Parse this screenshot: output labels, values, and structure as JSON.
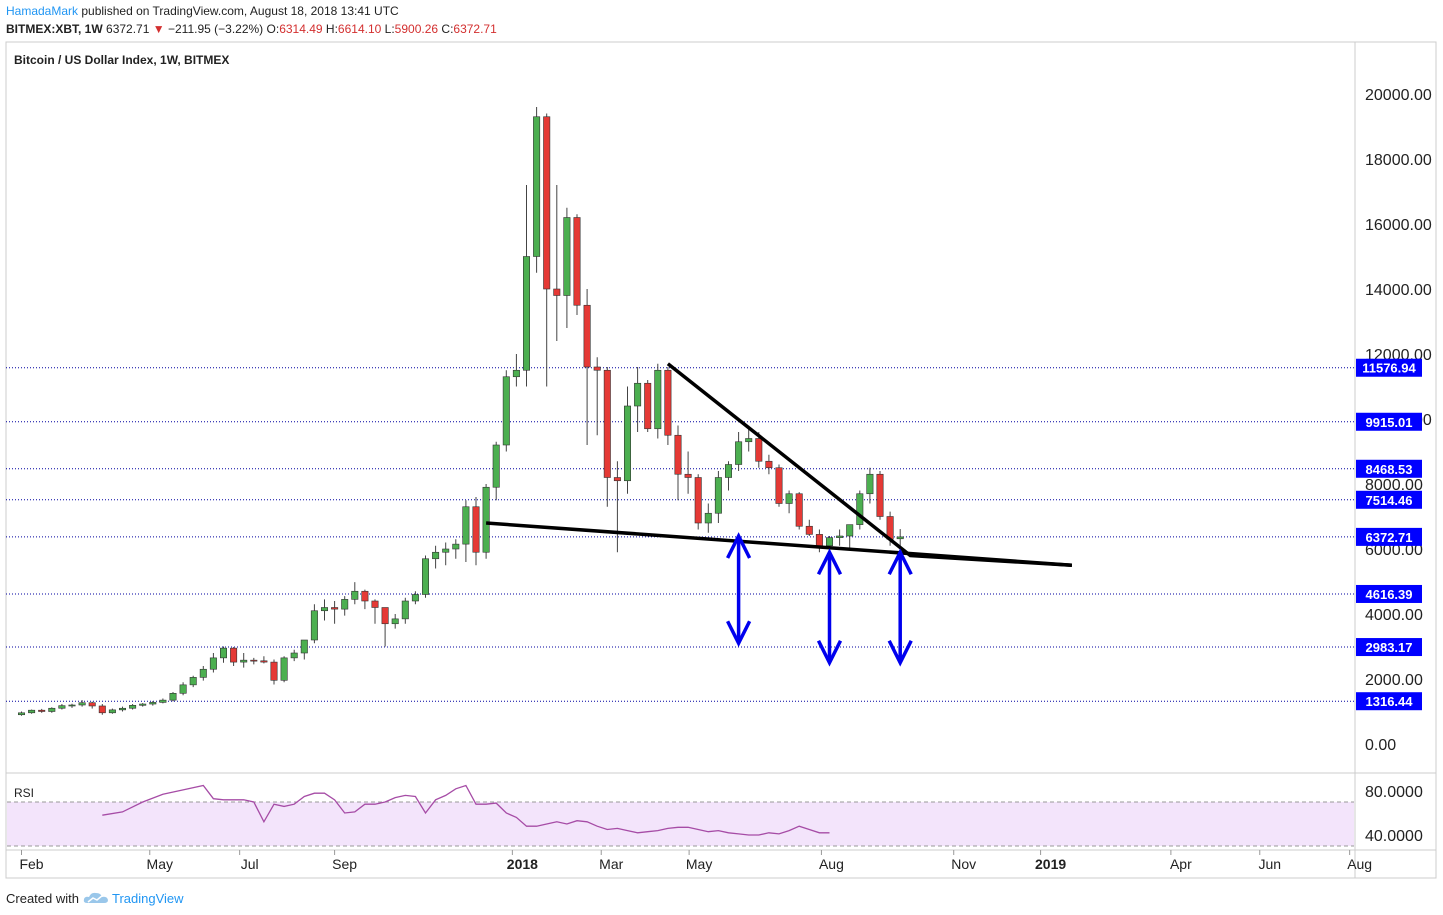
{
  "header": {
    "author": "HamadaMark",
    "published_text": " published on TradingView.com, August 18, 2018 13:41 UTC",
    "symbol_line": "BITMEX:XBT, 1W",
    "last": "6372.71",
    "change": "−211.95 (−3.22%)",
    "o_label": "O:",
    "o_value": "6314.49",
    "h_label": "H:",
    "h_value": "6614.10",
    "l_label": "L:",
    "l_value": "5900.26",
    "c_label": "C:",
    "c_value": "6372.71"
  },
  "footer": {
    "created_with": "Created with",
    "brand": "TradingView",
    "icon": "tradingview-cloud-icon"
  },
  "colors": {
    "up": "#4caf50",
    "down": "#e53935",
    "level_line": "#0000a0",
    "level_label_bg": "#0000ff",
    "arrows": "#0000ee",
    "trendline": "#000000",
    "rsi": "#a64ca6",
    "rsi_band": "#f3e4fb"
  },
  "chart_data": {
    "type": "candlestick",
    "title": "Bitcoin / US Dollar Index, 1W, BITMEX",
    "y_axis": {
      "min": 0,
      "max": 20000,
      "ticks": [
        "0.00",
        "2000.00",
        "4000.00",
        "6000.00",
        "8000.00",
        "10000.00",
        "12000.00",
        "14000.00",
        "16000.00",
        "18000.00",
        "20000.00"
      ]
    },
    "x_axis": {
      "labels": [
        {
          "text": "Feb",
          "t": 0.0,
          "bold": false
        },
        {
          "text": "May",
          "t": 12.7,
          "bold": false
        },
        {
          "text": "Jul",
          "t": 21.6,
          "bold": false
        },
        {
          "text": "Sep",
          "t": 31.0,
          "bold": false
        },
        {
          "text": "2018",
          "t": 48.6,
          "bold": true
        },
        {
          "text": "Mar",
          "t": 57.4,
          "bold": false
        },
        {
          "text": "May",
          "t": 66.1,
          "bold": false
        },
        {
          "text": "Aug",
          "t": 79.2,
          "bold": false
        },
        {
          "text": "Nov",
          "t": 92.3,
          "bold": false
        },
        {
          "text": "2019",
          "t": 100.9,
          "bold": true
        },
        {
          "text": "Apr",
          "t": 113.8,
          "bold": false
        },
        {
          "text": "Jun",
          "t": 122.6,
          "bold": false
        },
        {
          "text": "Aug",
          "t": 131.5,
          "bold": false
        }
      ]
    },
    "candles": [
      {
        "t": 0,
        "o": 900,
        "h": 1000,
        "l": 870,
        "c": 960
      },
      {
        "t": 1,
        "o": 960,
        "h": 1060,
        "l": 930,
        "c": 1040
      },
      {
        "t": 2,
        "o": 1040,
        "h": 1080,
        "l": 960,
        "c": 1000
      },
      {
        "t": 3,
        "o": 1000,
        "h": 1130,
        "l": 960,
        "c": 1100
      },
      {
        "t": 4,
        "o": 1100,
        "h": 1230,
        "l": 1060,
        "c": 1180
      },
      {
        "t": 5,
        "o": 1180,
        "h": 1240,
        "l": 1110,
        "c": 1200
      },
      {
        "t": 6,
        "o": 1200,
        "h": 1350,
        "l": 1150,
        "c": 1270
      },
      {
        "t": 7,
        "o": 1270,
        "h": 1300,
        "l": 1090,
        "c": 1170
      },
      {
        "t": 8,
        "o": 1170,
        "h": 1230,
        "l": 900,
        "c": 960
      },
      {
        "t": 9,
        "o": 960,
        "h": 1090,
        "l": 930,
        "c": 1050
      },
      {
        "t": 10,
        "o": 1050,
        "h": 1150,
        "l": 1000,
        "c": 1100
      },
      {
        "t": 11,
        "o": 1100,
        "h": 1230,
        "l": 1060,
        "c": 1190
      },
      {
        "t": 12,
        "o": 1190,
        "h": 1260,
        "l": 1150,
        "c": 1230
      },
      {
        "t": 13,
        "o": 1230,
        "h": 1320,
        "l": 1180,
        "c": 1280
      },
      {
        "t": 14,
        "o": 1280,
        "h": 1400,
        "l": 1250,
        "c": 1350
      },
      {
        "t": 15,
        "o": 1350,
        "h": 1600,
        "l": 1310,
        "c": 1560
      },
      {
        "t": 16,
        "o": 1560,
        "h": 1900,
        "l": 1500,
        "c": 1820
      },
      {
        "t": 17,
        "o": 1820,
        "h": 2100,
        "l": 1750,
        "c": 2050
      },
      {
        "t": 18,
        "o": 2050,
        "h": 2400,
        "l": 1950,
        "c": 2300
      },
      {
        "t": 19,
        "o": 2300,
        "h": 2800,
        "l": 2200,
        "c": 2650
      },
      {
        "t": 20,
        "o": 2650,
        "h": 3000,
        "l": 2500,
        "c": 2950
      },
      {
        "t": 21,
        "o": 2950,
        "h": 2980,
        "l": 2400,
        "c": 2520
      },
      {
        "t": 22,
        "o": 2520,
        "h": 2800,
        "l": 2350,
        "c": 2580
      },
      {
        "t": 23,
        "o": 2580,
        "h": 2650,
        "l": 2450,
        "c": 2560
      },
      {
        "t": 24,
        "o": 2560,
        "h": 2700,
        "l": 2480,
        "c": 2520
      },
      {
        "t": 25,
        "o": 2520,
        "h": 2600,
        "l": 1830,
        "c": 1960
      },
      {
        "t": 26,
        "o": 1960,
        "h": 2700,
        "l": 1900,
        "c": 2650
      },
      {
        "t": 27,
        "o": 2650,
        "h": 2900,
        "l": 2550,
        "c": 2800
      },
      {
        "t": 28,
        "o": 2800,
        "h": 3000,
        "l": 2600,
        "c": 3200
      },
      {
        "t": 29,
        "o": 3200,
        "h": 4300,
        "l": 3100,
        "c": 4100
      },
      {
        "t": 30,
        "o": 4100,
        "h": 4450,
        "l": 3800,
        "c": 4200
      },
      {
        "t": 31,
        "o": 4200,
        "h": 4400,
        "l": 3700,
        "c": 4150
      },
      {
        "t": 32,
        "o": 4150,
        "h": 4550,
        "l": 3950,
        "c": 4450
      },
      {
        "t": 33,
        "o": 4450,
        "h": 4980,
        "l": 4300,
        "c": 4700
      },
      {
        "t": 34,
        "o": 4700,
        "h": 4750,
        "l": 4150,
        "c": 4400
      },
      {
        "t": 35,
        "o": 4400,
        "h": 4450,
        "l": 3700,
        "c": 4200
      },
      {
        "t": 36,
        "o": 4200,
        "h": 4200,
        "l": 3000,
        "c": 3700
      },
      {
        "t": 37,
        "o": 3700,
        "h": 4000,
        "l": 3550,
        "c": 3850
      },
      {
        "t": 38,
        "o": 3850,
        "h": 4500,
        "l": 3700,
        "c": 4400
      },
      {
        "t": 39,
        "o": 4400,
        "h": 4700,
        "l": 4300,
        "c": 4600
      },
      {
        "t": 40,
        "o": 4600,
        "h": 5800,
        "l": 4500,
        "c": 5700
      },
      {
        "t": 41,
        "o": 5700,
        "h": 6100,
        "l": 5400,
        "c": 5900
      },
      {
        "t": 42,
        "o": 5900,
        "h": 6200,
        "l": 5500,
        "c": 6000
      },
      {
        "t": 43,
        "o": 6000,
        "h": 6300,
        "l": 5700,
        "c": 6150
      },
      {
        "t": 44,
        "o": 6150,
        "h": 7500,
        "l": 5600,
        "c": 7300
      },
      {
        "t": 45,
        "o": 7300,
        "h": 7600,
        "l": 5500,
        "c": 5900
      },
      {
        "t": 46,
        "o": 5900,
        "h": 8000,
        "l": 5700,
        "c": 7900
      },
      {
        "t": 47,
        "o": 7900,
        "h": 9300,
        "l": 7500,
        "c": 9200
      },
      {
        "t": 48,
        "o": 9200,
        "h": 11500,
        "l": 9000,
        "c": 11300
      },
      {
        "t": 49,
        "o": 11300,
        "h": 12000,
        "l": 11000,
        "c": 11500
      },
      {
        "t": 50,
        "o": 11500,
        "h": 17200,
        "l": 11000,
        "c": 15000
      },
      {
        "t": 51,
        "o": 15000,
        "h": 19600,
        "l": 14500,
        "c": 19300
      },
      {
        "t": 52,
        "o": 19300,
        "h": 19400,
        "l": 11000,
        "c": 14000
      },
      {
        "t": 53,
        "o": 14000,
        "h": 17200,
        "l": 12400,
        "c": 13800
      },
      {
        "t": 54,
        "o": 13800,
        "h": 16500,
        "l": 12800,
        "c": 16200
      },
      {
        "t": 55,
        "o": 16200,
        "h": 16300,
        "l": 13200,
        "c": 13500
      },
      {
        "t": 56,
        "o": 13500,
        "h": 14000,
        "l": 9200,
        "c": 11600
      },
      {
        "t": 57,
        "o": 11600,
        "h": 11900,
        "l": 9500,
        "c": 11500
      },
      {
        "t": 58,
        "o": 11500,
        "h": 11600,
        "l": 7300,
        "c": 8200
      },
      {
        "t": 59,
        "o": 8200,
        "h": 8700,
        "l": 5900,
        "c": 8100
      },
      {
        "t": 60,
        "o": 8100,
        "h": 11000,
        "l": 7700,
        "c": 10400
      },
      {
        "t": 61,
        "o": 10400,
        "h": 11600,
        "l": 9600,
        "c": 11100
      },
      {
        "t": 62,
        "o": 11100,
        "h": 11200,
        "l": 9600,
        "c": 9700
      },
      {
        "t": 63,
        "o": 9700,
        "h": 11700,
        "l": 9400,
        "c": 11500
      },
      {
        "t": 64,
        "o": 11500,
        "h": 11600,
        "l": 9200,
        "c": 9500
      },
      {
        "t": 65,
        "o": 9500,
        "h": 9800,
        "l": 7500,
        "c": 8300
      },
      {
        "t": 66,
        "o": 8300,
        "h": 9000,
        "l": 7700,
        "c": 8200
      },
      {
        "t": 67,
        "o": 8200,
        "h": 8300,
        "l": 6600,
        "c": 6800
      },
      {
        "t": 68,
        "o": 6800,
        "h": 7400,
        "l": 6500,
        "c": 7100
      },
      {
        "t": 69,
        "o": 7100,
        "h": 8400,
        "l": 6800,
        "c": 8200
      },
      {
        "t": 70,
        "o": 8200,
        "h": 8700,
        "l": 7800,
        "c": 8600
      },
      {
        "t": 71,
        "o": 8600,
        "h": 9600,
        "l": 8400,
        "c": 9300
      },
      {
        "t": 72,
        "o": 9300,
        "h": 9800,
        "l": 9000,
        "c": 9400
      },
      {
        "t": 73,
        "o": 9400,
        "h": 9600,
        "l": 8500,
        "c": 8700
      },
      {
        "t": 74,
        "o": 8700,
        "h": 8900,
        "l": 8300,
        "c": 8500
      },
      {
        "t": 75,
        "o": 8500,
        "h": 8600,
        "l": 7300,
        "c": 7400
      },
      {
        "t": 76,
        "o": 7400,
        "h": 7800,
        "l": 7100,
        "c": 7700
      },
      {
        "t": 77,
        "o": 7700,
        "h": 7750,
        "l": 6600,
        "c": 6700
      },
      {
        "t": 78,
        "o": 6700,
        "h": 6900,
        "l": 6400,
        "c": 6450
      },
      {
        "t": 79,
        "o": 6450,
        "h": 6600,
        "l": 5900,
        "c": 6100
      },
      {
        "t": 80,
        "o": 6100,
        "h": 6400,
        "l": 5800,
        "c": 6350
      },
      {
        "t": 81,
        "o": 6350,
        "h": 6600,
        "l": 6100,
        "c": 6400
      },
      {
        "t": 82,
        "o": 6400,
        "h": 6700,
        "l": 6000,
        "c": 6750
      },
      {
        "t": 83,
        "o": 6750,
        "h": 7800,
        "l": 6600,
        "c": 7700
      },
      {
        "t": 84,
        "o": 7700,
        "h": 8500,
        "l": 7400,
        "c": 8300
      },
      {
        "t": 85,
        "o": 8300,
        "h": 8400,
        "l": 6900,
        "c": 7000
      },
      {
        "t": 86,
        "o": 7000,
        "h": 7150,
        "l": 6100,
        "c": 6300
      },
      {
        "t": 87,
        "o": 6314.49,
        "h": 6614.1,
        "l": 5900.26,
        "c": 6372.71
      }
    ],
    "levels": [
      "11576.94",
      "9915.01",
      "8468.53",
      "7514.46",
      "6372.71",
      "4616.39",
      "2983.17",
      "1316.44"
    ],
    "trendlines": [
      {
        "t1": 64,
        "p1": 11700,
        "t2": 88,
        "p2": 5800,
        "t3": 104,
        "p3": 5500
      },
      {
        "t1": 46,
        "p1": 6800,
        "t2": 104,
        "p2": 5500
      }
    ],
    "arrows": [
      {
        "t": 71,
        "top": 6400,
        "bottom": 3100
      },
      {
        "t": 80,
        "top": 5900,
        "bottom": 2500
      },
      {
        "t": 87,
        "top": 5900,
        "bottom": 2500
      }
    ],
    "rsi": {
      "label": "RSI",
      "ticks": [
        "80.0000",
        "40.0000"
      ],
      "band": [
        70,
        30
      ],
      "values": [
        {
          "t": 8,
          "v": 58
        },
        {
          "t": 10,
          "v": 61
        },
        {
          "t": 12,
          "v": 70
        },
        {
          "t": 14,
          "v": 77
        },
        {
          "t": 16,
          "v": 81
        },
        {
          "t": 18,
          "v": 85
        },
        {
          "t": 19,
          "v": 73
        },
        {
          "t": 20,
          "v": 72
        },
        {
          "t": 22,
          "v": 72
        },
        {
          "t": 23,
          "v": 70
        },
        {
          "t": 24,
          "v": 52
        },
        {
          "t": 25,
          "v": 68
        },
        {
          "t": 26,
          "v": 66
        },
        {
          "t": 27,
          "v": 68
        },
        {
          "t": 28,
          "v": 75
        },
        {
          "t": 29,
          "v": 78
        },
        {
          "t": 30,
          "v": 78
        },
        {
          "t": 31,
          "v": 72
        },
        {
          "t": 32,
          "v": 60
        },
        {
          "t": 33,
          "v": 61
        },
        {
          "t": 34,
          "v": 68
        },
        {
          "t": 35,
          "v": 68
        },
        {
          "t": 36,
          "v": 70
        },
        {
          "t": 37,
          "v": 74
        },
        {
          "t": 38,
          "v": 76
        },
        {
          "t": 39,
          "v": 75
        },
        {
          "t": 40,
          "v": 60
        },
        {
          "t": 41,
          "v": 72
        },
        {
          "t": 42,
          "v": 76
        },
        {
          "t": 43,
          "v": 82
        },
        {
          "t": 44,
          "v": 85
        },
        {
          "t": 45,
          "v": 68
        },
        {
          "t": 46,
          "v": 68
        },
        {
          "t": 47,
          "v": 69
        },
        {
          "t": 48,
          "v": 60
        },
        {
          "t": 49,
          "v": 56
        },
        {
          "t": 50,
          "v": 48
        },
        {
          "t": 51,
          "v": 48
        },
        {
          "t": 52,
          "v": 50
        },
        {
          "t": 53,
          "v": 52
        },
        {
          "t": 54,
          "v": 50
        },
        {
          "t": 55,
          "v": 53
        },
        {
          "t": 56,
          "v": 52
        },
        {
          "t": 57,
          "v": 48
        },
        {
          "t": 58,
          "v": 45
        },
        {
          "t": 59,
          "v": 46
        },
        {
          "t": 60,
          "v": 44
        },
        {
          "t": 61,
          "v": 42
        },
        {
          "t": 62,
          "v": 43
        },
        {
          "t": 63,
          "v": 44
        },
        {
          "t": 64,
          "v": 46
        },
        {
          "t": 65,
          "v": 47
        },
        {
          "t": 66,
          "v": 47
        },
        {
          "t": 67,
          "v": 45
        },
        {
          "t": 68,
          "v": 43
        },
        {
          "t": 69,
          "v": 44
        },
        {
          "t": 70,
          "v": 42
        },
        {
          "t": 71,
          "v": 41
        },
        {
          "t": 72,
          "v": 40
        },
        {
          "t": 73,
          "v": 40
        },
        {
          "t": 74,
          "v": 42
        },
        {
          "t": 75,
          "v": 41
        },
        {
          "t": 76,
          "v": 44
        },
        {
          "t": 77,
          "v": 48
        },
        {
          "t": 78,
          "v": 45
        },
        {
          "t": 79,
          "v": 42
        },
        {
          "t": 80,
          "v": 42
        }
      ]
    }
  }
}
